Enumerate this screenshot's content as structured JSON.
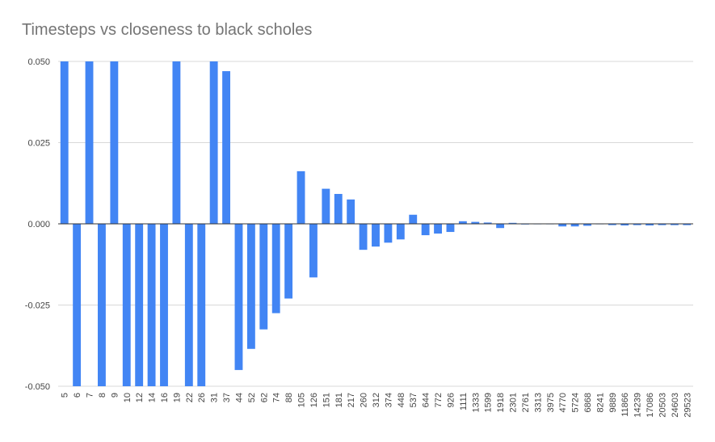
{
  "chart_data": {
    "type": "bar",
    "title": "Timesteps vs closeness to black scholes",
    "xlabel": "",
    "ylabel": "",
    "ylim": [
      -0.05,
      0.05
    ],
    "yticks": [
      "0.050",
      "0.025",
      "0.000",
      "-0.025",
      "-0.050"
    ],
    "ytick_values": [
      0.05,
      0.025,
      0,
      -0.025,
      -0.05
    ],
    "grid": true,
    "legend": "none",
    "color": "#4285f4",
    "categories": [
      "5",
      "6",
      "7",
      "8",
      "9",
      "10",
      "12",
      "14",
      "16",
      "19",
      "22",
      "26",
      "31",
      "37",
      "44",
      "52",
      "62",
      "74",
      "88",
      "105",
      "126",
      "151",
      "181",
      "217",
      "260",
      "312",
      "374",
      "448",
      "537",
      "644",
      "772",
      "926",
      "1111",
      "1333",
      "1599",
      "1918",
      "2301",
      "2761",
      "3313",
      "3975",
      "4770",
      "5724",
      "6868",
      "8241",
      "9889",
      "11866",
      "14239",
      "17086",
      "20503",
      "24603",
      "29523"
    ],
    "values": [
      0.05,
      -0.05,
      0.05,
      -0.05,
      0.05,
      -0.05,
      -0.05,
      -0.05,
      -0.05,
      0.05,
      -0.05,
      -0.05,
      0.05,
      0.047,
      -0.045,
      -0.0385,
      -0.0325,
      -0.0275,
      -0.023,
      0.0162,
      -0.0165,
      0.0108,
      0.0092,
      0.0075,
      -0.008,
      -0.007,
      -0.0058,
      -0.0048,
      0.0028,
      -0.0035,
      -0.003,
      -0.0025,
      0.0008,
      0.0006,
      0.0004,
      -0.0013,
      0.0003,
      -0.0002,
      -0.0001,
      -0.0001,
      -0.0008,
      -0.0008,
      -0.0006,
      -0.0001,
      -0.0004,
      -0.0005,
      -0.0004,
      -0.0005,
      -0.0004,
      -0.0004,
      -0.0004
    ]
  }
}
